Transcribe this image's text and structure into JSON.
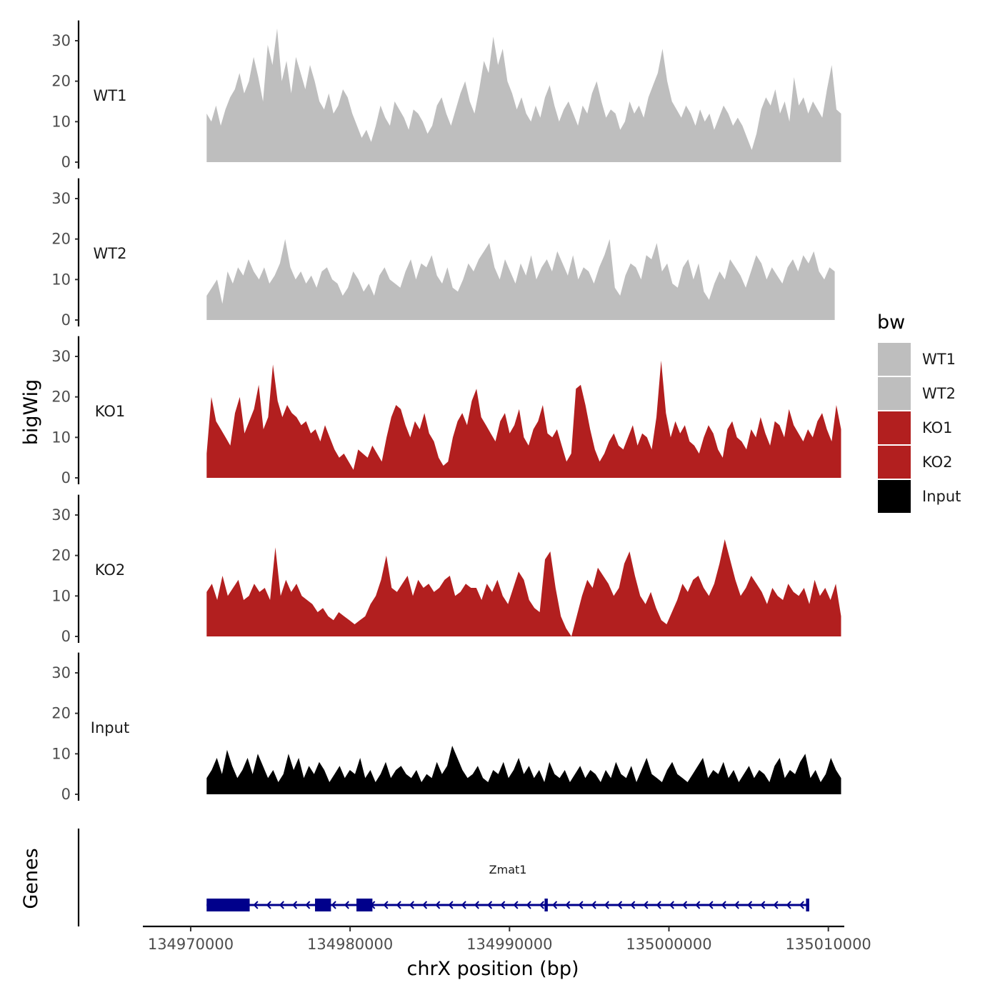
{
  "chart_data": {
    "type": "area",
    "ylabel": "bigWig",
    "genes_label": "Genes",
    "xlabel": "chrX position (bp)",
    "x_range": [
      134967000,
      135011000
    ],
    "region": [
      134971000,
      135010800
    ],
    "y_range": [
      0,
      35
    ],
    "y_ticks": [
      0,
      10,
      20,
      30
    ],
    "x_ticks": [
      134970000,
      134980000,
      134990000,
      135000000,
      135010000
    ],
    "x_tick_labels": [
      "134970000",
      "134980000",
      "134990000",
      "135000000",
      "135010000"
    ],
    "legend": {
      "title": "bw",
      "items": [
        {
          "label": "WT1",
          "color": "#bebebe"
        },
        {
          "label": "WT2",
          "color": "#bebebe"
        },
        {
          "label": "KO1",
          "color": "#b21f1f"
        },
        {
          "label": "KO2",
          "color": "#b21f1f"
        },
        {
          "label": "Input",
          "color": "#000000"
        }
      ]
    },
    "series": [
      {
        "name": "WT1",
        "color": "#bebebe",
        "start": 134971000,
        "end": 135010800,
        "values": [
          12,
          10,
          14,
          9,
          13,
          16,
          18,
          22,
          17,
          20,
          26,
          21,
          15,
          29,
          24,
          33,
          20,
          25,
          17,
          26,
          22,
          18,
          24,
          20,
          15,
          13,
          17,
          12,
          14,
          18,
          16,
          12,
          9,
          6,
          8,
          5,
          9,
          14,
          11,
          9,
          15,
          13,
          11,
          8,
          13,
          12,
          10,
          7,
          9,
          14,
          16,
          12,
          9,
          13,
          17,
          20,
          15,
          12,
          18,
          25,
          22,
          31,
          24,
          28,
          20,
          17,
          13,
          16,
          12,
          10,
          14,
          11,
          16,
          19,
          14,
          10,
          13,
          15,
          12,
          9,
          14,
          12,
          17,
          20,
          15,
          11,
          13,
          12,
          8,
          10,
          15,
          12,
          14,
          11,
          16,
          19,
          22,
          28,
          20,
          15,
          13,
          11,
          14,
          12,
          9,
          13,
          10,
          12,
          8,
          11,
          14,
          12,
          9,
          11,
          9,
          6,
          3,
          7,
          13,
          16,
          14,
          18,
          12,
          15,
          10,
          21,
          14,
          16,
          12,
          15,
          13,
          11,
          18,
          24,
          13,
          12
        ]
      },
      {
        "name": "WT2",
        "color": "#bebebe",
        "start": 134971000,
        "end": 135010400,
        "values": [
          6,
          8,
          10,
          4,
          12,
          9,
          13,
          11,
          15,
          12,
          10,
          13,
          9,
          11,
          14,
          20,
          13,
          10,
          12,
          9,
          11,
          8,
          12,
          13,
          10,
          9,
          6,
          8,
          12,
          10,
          7,
          9,
          6,
          11,
          13,
          10,
          9,
          8,
          12,
          15,
          10,
          14,
          13,
          16,
          11,
          9,
          13,
          8,
          7,
          10,
          14,
          12,
          15,
          17,
          19,
          13,
          10,
          15,
          12,
          9,
          14,
          11,
          16,
          10,
          13,
          15,
          12,
          17,
          14,
          11,
          16,
          10,
          13,
          12,
          9,
          13,
          16,
          20,
          8,
          6,
          11,
          14,
          13,
          10,
          16,
          15,
          19,
          12,
          14,
          9,
          8,
          13,
          15,
          10,
          14,
          7,
          5,
          9,
          12,
          10,
          15,
          13,
          11,
          8,
          12,
          16,
          14,
          10,
          13,
          11,
          9,
          13,
          15,
          12,
          16,
          14,
          17,
          12,
          10,
          13,
          12
        ]
      },
      {
        "name": "KO1",
        "color": "#b21f1f",
        "start": 134971000,
        "end": 135010800,
        "values": [
          6,
          20,
          14,
          12,
          10,
          8,
          16,
          20,
          11,
          14,
          17,
          23,
          12,
          15,
          28,
          19,
          15,
          18,
          16,
          15,
          13,
          14,
          11,
          12,
          9,
          13,
          10,
          7,
          5,
          6,
          4,
          2,
          7,
          6,
          5,
          8,
          6,
          4,
          10,
          15,
          18,
          17,
          13,
          10,
          14,
          12,
          16,
          11,
          9,
          5,
          3,
          4,
          10,
          14,
          16,
          13,
          19,
          22,
          15,
          13,
          11,
          9,
          14,
          16,
          11,
          13,
          17,
          10,
          8,
          12,
          14,
          18,
          11,
          10,
          12,
          8,
          4,
          6,
          22,
          23,
          18,
          12,
          7,
          4,
          6,
          9,
          11,
          8,
          7,
          10,
          13,
          8,
          11,
          10,
          7,
          15,
          29,
          16,
          10,
          14,
          11,
          13,
          9,
          8,
          6,
          10,
          13,
          11,
          7,
          5,
          12,
          14,
          10,
          9,
          7,
          12,
          10,
          15,
          11,
          8,
          14,
          13,
          10,
          17,
          13,
          11,
          9,
          12,
          10,
          14,
          16,
          12,
          9,
          18,
          12
        ]
      },
      {
        "name": "KO2",
        "color": "#b21f1f",
        "start": 134971000,
        "end": 135010800,
        "values": [
          11,
          13,
          9,
          15,
          10,
          12,
          14,
          9,
          10,
          13,
          11,
          12,
          9,
          22,
          10,
          14,
          11,
          13,
          10,
          9,
          8,
          6,
          7,
          5,
          4,
          6,
          5,
          4,
          3,
          4,
          5,
          8,
          10,
          14,
          20,
          12,
          11,
          13,
          15,
          10,
          14,
          12,
          13,
          11,
          12,
          14,
          15,
          10,
          11,
          13,
          12,
          12,
          9,
          13,
          11,
          14,
          10,
          8,
          12,
          16,
          14,
          9,
          7,
          6,
          19,
          21,
          12,
          5,
          2,
          0,
          5,
          10,
          14,
          12,
          17,
          15,
          13,
          10,
          12,
          18,
          21,
          15,
          10,
          8,
          11,
          7,
          4,
          3,
          6,
          9,
          13,
          11,
          14,
          15,
          12,
          10,
          13,
          18,
          24,
          19,
          14,
          10,
          12,
          15,
          13,
          11,
          8,
          12,
          10,
          9,
          13,
          11,
          10,
          12,
          8,
          14,
          10,
          12,
          9,
          13,
          5
        ]
      },
      {
        "name": "Input",
        "color": "#000000",
        "start": 134971000,
        "end": 135010800,
        "values": [
          4,
          6,
          9,
          5,
          11,
          7,
          4,
          6,
          9,
          5,
          10,
          7,
          4,
          6,
          3,
          5,
          10,
          6,
          9,
          4,
          7,
          5,
          8,
          6,
          3,
          5,
          7,
          4,
          6,
          5,
          9,
          4,
          6,
          3,
          5,
          8,
          4,
          6,
          7,
          5,
          4,
          6,
          3,
          5,
          4,
          8,
          5,
          7,
          12,
          9,
          6,
          4,
          5,
          7,
          4,
          3,
          6,
          5,
          8,
          4,
          6,
          9,
          5,
          7,
          4,
          6,
          3,
          8,
          5,
          4,
          6,
          3,
          5,
          7,
          4,
          6,
          5,
          3,
          6,
          4,
          8,
          5,
          4,
          7,
          3,
          6,
          9,
          5,
          4,
          3,
          6,
          8,
          5,
          4,
          3,
          5,
          7,
          9,
          4,
          6,
          5,
          8,
          4,
          6,
          3,
          5,
          7,
          4,
          6,
          5,
          3,
          7,
          9,
          4,
          6,
          5,
          8,
          10,
          4,
          6,
          3,
          5,
          9,
          6,
          4
        ]
      }
    ],
    "gene": {
      "name": "Zmat1",
      "strand": "-",
      "start": 134971000,
      "end": 135008800,
      "exons": [
        [
          134971000,
          134973700
        ],
        [
          134977800,
          134978800
        ],
        [
          134980400,
          134981400
        ],
        [
          134992200,
          134992400
        ],
        [
          135008600,
          135008800
        ]
      ],
      "color": "#00008b"
    }
  }
}
